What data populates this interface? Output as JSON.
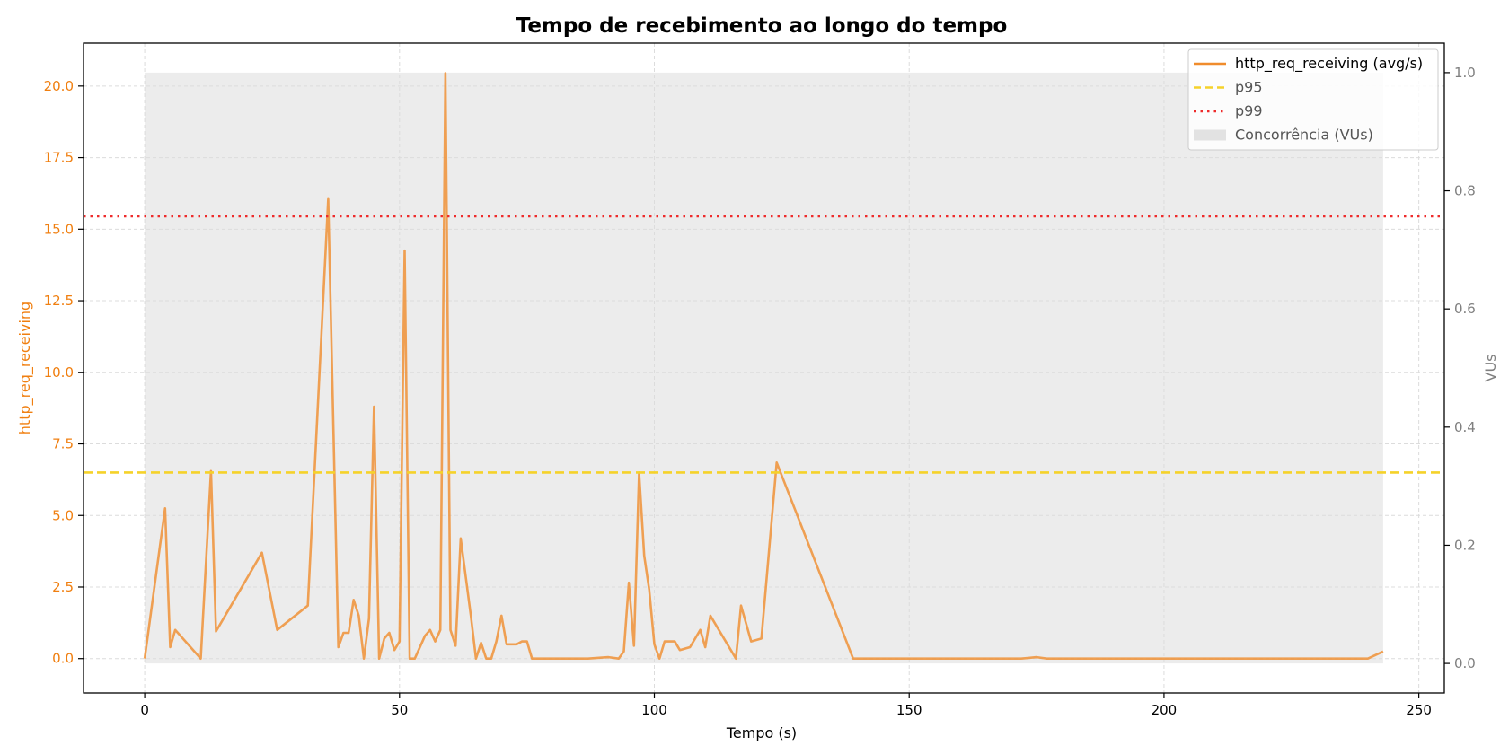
{
  "colors": {
    "line": "#f08c2c",
    "left_axis": "#f07f10",
    "right_axis": "#7f7f7f",
    "p95": "#f5d22a",
    "p99": "#ee2b2b",
    "vus_fill": "#e2e2e2",
    "grid": "#dcdcdc"
  },
  "chart_data": {
    "type": "line",
    "title": "Tempo de recebimento ao longo do tempo",
    "xlabel": "Tempo (s)",
    "ylabel_left": "http_req_receiving",
    "ylabel_right": "VUs",
    "xlim": [
      -12,
      255
    ],
    "ylim_left": [
      -1.2,
      21.5
    ],
    "ylim_right": [
      -0.05,
      1.05
    ],
    "x_ticks": [
      0,
      50,
      100,
      150,
      200,
      250
    ],
    "x_tick_labels": [
      "0",
      "50",
      "100",
      "150",
      "200",
      "250"
    ],
    "y_left_ticks": [
      0,
      2.5,
      5,
      7.5,
      10,
      12.5,
      15,
      17.5,
      20
    ],
    "y_left_tick_labels": [
      "0.0",
      "2.5",
      "5.0",
      "7.5",
      "10.0",
      "12.5",
      "15.0",
      "17.5",
      "20.0"
    ],
    "y_right_ticks": [
      0,
      0.2,
      0.4,
      0.6,
      0.8,
      1.0
    ],
    "y_right_tick_labels": [
      "0.0",
      "0.2",
      "0.4",
      "0.6",
      "0.8",
      "1.0"
    ],
    "grid": true,
    "legend_position": "top-right",
    "legend": [
      {
        "label": "http_req_receiving (avg/s)",
        "style": "line"
      },
      {
        "label": "p95",
        "style": "dashed"
      },
      {
        "label": "p99",
        "style": "dotted"
      },
      {
        "label": "Concorrência (VUs)",
        "style": "area"
      }
    ],
    "series": [
      {
        "name": "http_req_receiving (avg/s)",
        "axis": "left",
        "points": [
          [
            0,
            0
          ],
          [
            4,
            5.25
          ],
          [
            5,
            0.4
          ],
          [
            6,
            1.0
          ],
          [
            11,
            0.0
          ],
          [
            13,
            6.55
          ],
          [
            14,
            0.95
          ],
          [
            23,
            3.7
          ],
          [
            26,
            1.0
          ],
          [
            32,
            1.85
          ],
          [
            36,
            16.05
          ],
          [
            38,
            0.4
          ],
          [
            39,
            0.9
          ],
          [
            40,
            0.9
          ],
          [
            41,
            2.05
          ],
          [
            42,
            1.5
          ],
          [
            43,
            0.0
          ],
          [
            44,
            1.4
          ],
          [
            45,
            8.8
          ],
          [
            46,
            0.0
          ],
          [
            47,
            0.7
          ],
          [
            48,
            0.9
          ],
          [
            49,
            0.3
          ],
          [
            50,
            0.6
          ],
          [
            51,
            14.25
          ],
          [
            52,
            0.0
          ],
          [
            53,
            0.0
          ],
          [
            55,
            0.8
          ],
          [
            56,
            1.0
          ],
          [
            57,
            0.6
          ],
          [
            58,
            1.0
          ],
          [
            59,
            20.45
          ],
          [
            60,
            1.0
          ],
          [
            61,
            0.45
          ],
          [
            62,
            4.2
          ],
          [
            64,
            1.5
          ],
          [
            65,
            0.0
          ],
          [
            66,
            0.55
          ],
          [
            67,
            0.0
          ],
          [
            68,
            0.0
          ],
          [
            69,
            0.6
          ],
          [
            70,
            1.5
          ],
          [
            71,
            0.5
          ],
          [
            73,
            0.5
          ],
          [
            74,
            0.6
          ],
          [
            75,
            0.6
          ],
          [
            76,
            0.0
          ],
          [
            87,
            0.0
          ],
          [
            91,
            0.05
          ],
          [
            93,
            0.0
          ],
          [
            94,
            0.25
          ],
          [
            95,
            2.65
          ],
          [
            96,
            0.45
          ],
          [
            97,
            6.5
          ],
          [
            98,
            3.6
          ],
          [
            99,
            2.4
          ],
          [
            100,
            0.5
          ],
          [
            101,
            0.0
          ],
          [
            102,
            0.6
          ],
          [
            104,
            0.6
          ],
          [
            105,
            0.3
          ],
          [
            107,
            0.4
          ],
          [
            109,
            1.0
          ],
          [
            110,
            0.4
          ],
          [
            111,
            1.5
          ],
          [
            116,
            0.0
          ],
          [
            117,
            1.85
          ],
          [
            119,
            0.6
          ],
          [
            121,
            0.7
          ],
          [
            124,
            6.85
          ],
          [
            139,
            0.0
          ],
          [
            172,
            0.0
          ],
          [
            175,
            0.05
          ],
          [
            177,
            0.0
          ],
          [
            240,
            0.0
          ],
          [
            243,
            0.25
          ]
        ]
      }
    ],
    "vus": {
      "axis": "right",
      "x_start": 0,
      "x_end": 243,
      "value": 1.0
    },
    "reference_lines": [
      {
        "label": "p95",
        "value": 6.5
      },
      {
        "label": "p99",
        "value": 15.45
      }
    ]
  }
}
